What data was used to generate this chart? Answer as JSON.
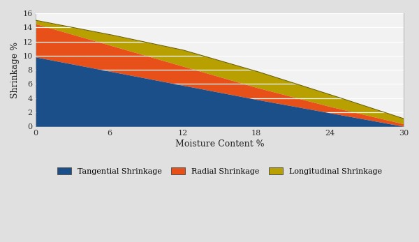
{
  "x": [
    0,
    6,
    12,
    18,
    24,
    30
  ],
  "tangential": [
    9.8,
    7.8,
    5.8,
    3.8,
    1.9,
    0.0
  ],
  "radial": [
    14.5,
    11.5,
    8.5,
    5.5,
    2.8,
    0.35
  ],
  "longitudinal": [
    15.0,
    13.0,
    10.8,
    7.8,
    4.5,
    1.1
  ],
  "tangential_color": "#1B4F8A",
  "radial_color": "#E8501A",
  "longitudinal_color": "#B8A000",
  "background_color": "#E0E0E0",
  "plot_bg_color": "#F2F2F2",
  "xlabel": "Moisture Content %",
  "ylabel": "Shrinkage %",
  "ylim": [
    0,
    16
  ],
  "xlim": [
    0,
    30
  ],
  "xticks": [
    0,
    6,
    12,
    18,
    24,
    30
  ],
  "yticks": [
    0,
    2,
    4,
    6,
    8,
    10,
    12,
    14,
    16
  ],
  "legend_labels": [
    "Tangential Shrinkage",
    "Radial Shrinkage",
    "Longitudinal Shrinkage"
  ],
  "figsize": [
    6.0,
    3.47
  ],
  "dpi": 100
}
